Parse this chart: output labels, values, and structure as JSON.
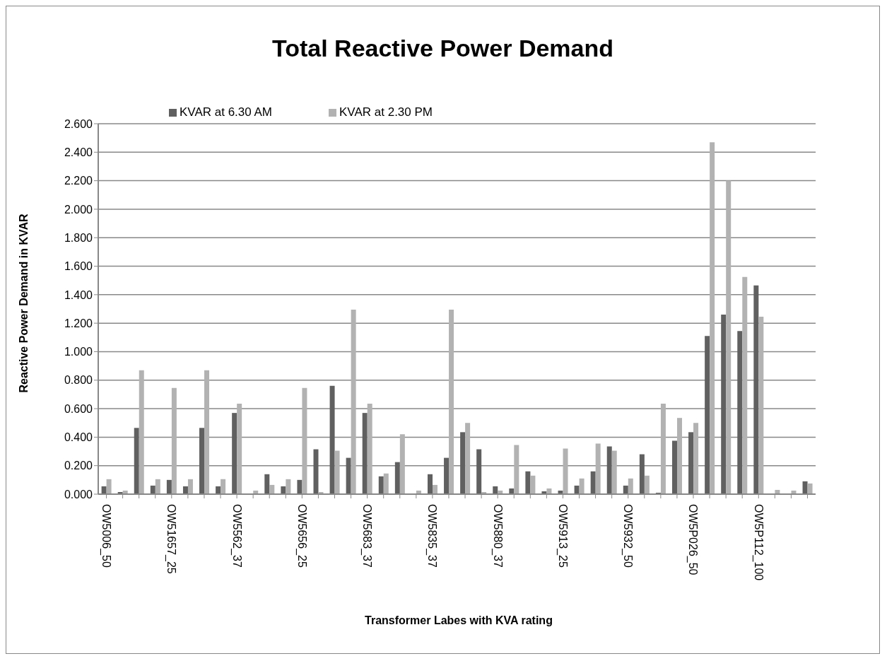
{
  "chart_data": {
    "type": "bar",
    "title": "Total Reactive Power Demand",
    "xlabel": "Transformer Labes  with KVA rating",
    "ylabel": "Reactive Power Demand in KVAR",
    "categories": [
      "OW5006_50",
      null,
      null,
      null,
      "OW51657_25",
      null,
      null,
      null,
      "OW5562_37",
      null,
      null,
      null,
      "OW5656_25",
      null,
      null,
      null,
      "OW5683_37",
      null,
      null,
      null,
      "OW5835_37",
      null,
      null,
      null,
      "OW5880_37",
      null,
      null,
      null,
      "OW5913_25",
      null,
      null,
      null,
      "OW5932_50",
      null,
      null,
      null,
      "OW5P026_50",
      null,
      null,
      null,
      "OW5P112_100",
      null,
      null,
      null
    ],
    "series": [
      {
        "name": "KVAR at 6.30 AM",
        "color": "#606060",
        "values": [
          0.055,
          0.015,
          0.465,
          0.06,
          0.1,
          0.055,
          0.465,
          0.055,
          0.57,
          0,
          0.14,
          0.055,
          0.1,
          0.315,
          0.76,
          0.255,
          0.57,
          0.125,
          0.225,
          0,
          0.14,
          0.255,
          0.435,
          0.315,
          0.055,
          0.04,
          0.16,
          0.02,
          0.025,
          0.06,
          0.16,
          0.335,
          0.06,
          0.28,
          0.01,
          0.375,
          0.435,
          1.11,
          1.26,
          1.145,
          1.465,
          0.005,
          0.005,
          0.09
        ]
      },
      {
        "name": "KVAR at 2.30 PM",
        "color": "#b2b2b2",
        "values": [
          0.105,
          0.025,
          0.87,
          0.105,
          0.745,
          0.105,
          0.87,
          0.105,
          0.635,
          0.025,
          0.065,
          0.105,
          0.745,
          0.015,
          0.305,
          1.295,
          0.635,
          0.145,
          0.42,
          0.025,
          0.065,
          1.295,
          0.5,
          0.015,
          0.025,
          0.345,
          0.13,
          0.04,
          0.32,
          0.11,
          0.355,
          0.305,
          0.11,
          0.13,
          0.635,
          0.535,
          0.5,
          2.47,
          2.2,
          1.525,
          1.245,
          0.03,
          0.025,
          0.075
        ]
      }
    ],
    "ylim": [
      0,
      2.6
    ],
    "yticks": [
      {
        "value": 0,
        "label": "0.000"
      },
      {
        "value": 0.2,
        "label": "0.200"
      },
      {
        "value": 0.4,
        "label": "0.400"
      },
      {
        "value": 0.6,
        "label": "0.600"
      },
      {
        "value": 0.8,
        "label": "0.800"
      },
      {
        "value": 1,
        "label": "1.000"
      },
      {
        "value": 1.2,
        "label": "1.200"
      },
      {
        "value": 1.4,
        "label": "1.400"
      },
      {
        "value": 1.6,
        "label": "1.600"
      },
      {
        "value": 1.8,
        "label": "1.800"
      },
      {
        "value": 2,
        "label": "2.000"
      },
      {
        "value": 2.2,
        "label": "2.200"
      },
      {
        "value": 2.4,
        "label": "2.400"
      },
      {
        "value": 2.6,
        "label": "2.600"
      }
    ],
    "grid": "y",
    "legend": "top left"
  }
}
